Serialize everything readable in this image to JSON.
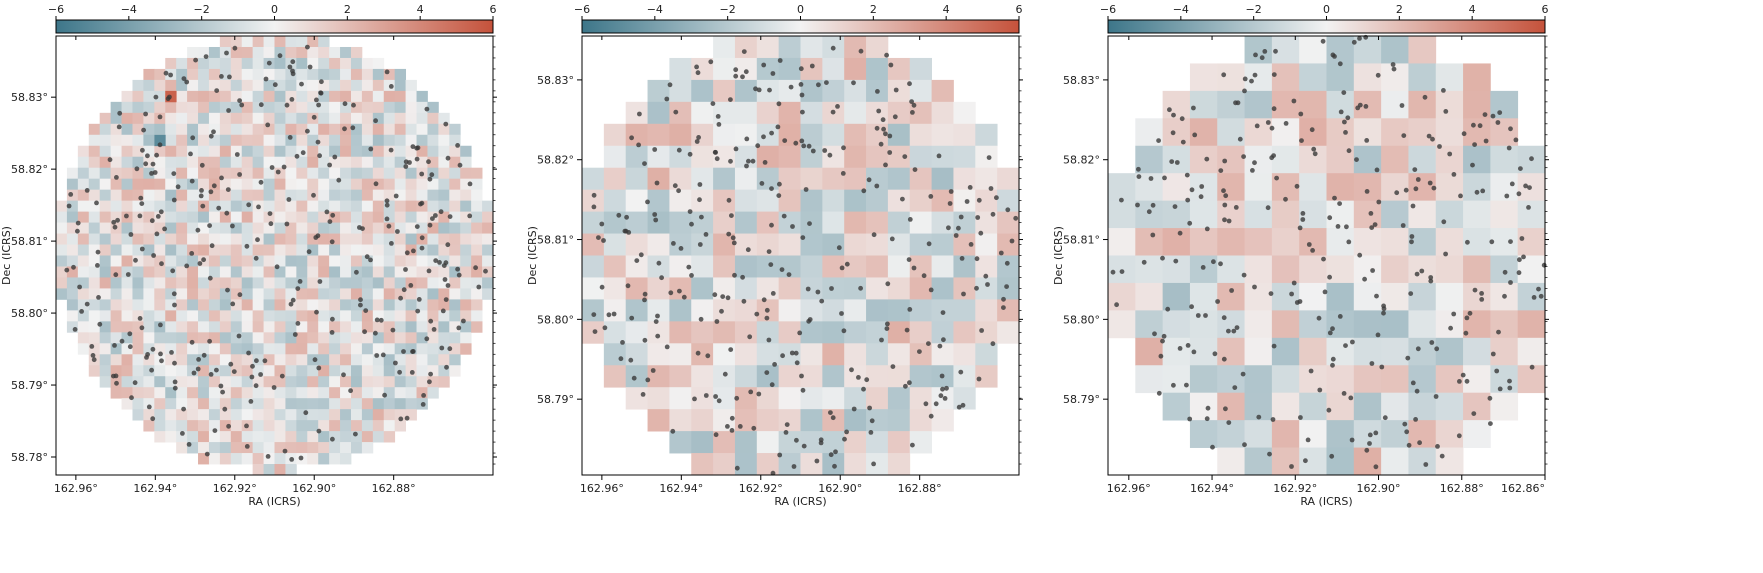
{
  "colorbar": {
    "min": -6,
    "max": 6,
    "ticks": [
      "−6",
      "−4",
      "−2",
      "0",
      "2",
      "4",
      "6"
    ],
    "colors": {
      "negative": "#3d7689",
      "zero": "#f2f2f2",
      "positive": "#c5523b"
    }
  },
  "chart_data": [
    {
      "type": "heatmap",
      "panel": 1,
      "xlabel": "RA (ICRS)",
      "ylabel": "Dec (ICRS)",
      "xlim": [
        162.965,
        162.855
      ],
      "ylim": [
        58.7775,
        58.8385
      ],
      "x_ticks": [
        162.96,
        162.94,
        162.92,
        162.9,
        162.88
      ],
      "x_tick_labels": [
        "162.96°",
        "162.94°",
        "162.92°",
        "162.90°",
        "162.88°"
      ],
      "y_ticks": [
        58.78,
        58.79,
        58.8,
        58.81,
        58.82,
        58.83
      ],
      "y_tick_labels": [
        "58.78°",
        "58.79°",
        "58.80°",
        "58.81°",
        "58.82°",
        "58.83°"
      ],
      "grid_cols": 40,
      "grid_rows": 40,
      "footprint_center": [
        162.91,
        58.8085
      ],
      "footprint_radius_fraction": 0.5,
      "value_range": [
        -6,
        6
      ],
      "n_sources": 340,
      "seed": 11,
      "highlight_cells": [
        {
          "ra": 162.936,
          "dec": 58.8295,
          "value": 5.4
        },
        {
          "ra": 162.9385,
          "dec": 58.8245,
          "value": -5.0
        }
      ]
    },
    {
      "type": "heatmap",
      "panel": 2,
      "xlabel": "RA (ICRS)",
      "ylabel": "Dec (ICRS)",
      "xlim": [
        162.965,
        162.855
      ],
      "ylim": [
        58.7805,
        58.8355
      ],
      "x_ticks": [
        162.96,
        162.94,
        162.92,
        162.9,
        162.88
      ],
      "x_tick_labels": [
        "162.96°",
        "162.94°",
        "162.92°",
        "162.90°",
        "162.88°"
      ],
      "y_ticks": [
        58.79,
        58.8,
        58.81,
        58.82,
        58.83
      ],
      "y_tick_labels": [
        "58.79°",
        "58.80°",
        "58.81°",
        "58.82°",
        "58.83°"
      ],
      "grid_cols": 20,
      "grid_rows": 20,
      "footprint_center": [
        162.91,
        58.8075
      ],
      "footprint_radius_fraction": 0.52,
      "value_range": [
        -6,
        6
      ],
      "n_sources": 320,
      "seed": 23,
      "highlight_cells": []
    },
    {
      "type": "heatmap",
      "panel": 3,
      "xlabel": "RA (ICRS)",
      "ylabel": "Dec (ICRS)",
      "xlim": [
        162.965,
        162.86
      ],
      "ylim": [
        58.7805,
        58.8355
      ],
      "x_ticks": [
        162.96,
        162.94,
        162.92,
        162.9,
        162.88,
        162.86
      ],
      "x_tick_labels": [
        "162.96°",
        "162.94°",
        "162.92°",
        "162.90°",
        "162.88°",
        "162.86°"
      ],
      "y_ticks": [
        58.79,
        58.8,
        58.81,
        58.82,
        58.83
      ],
      "y_tick_labels": [
        "58.79°",
        "58.80°",
        "58.81°",
        "58.82°",
        "58.83°"
      ],
      "grid_cols": 16,
      "grid_rows": 16,
      "footprint_center": [
        162.91,
        58.8075
      ],
      "footprint_radius_fraction": 0.53,
      "value_range": [
        -6,
        6
      ],
      "n_sources": 300,
      "seed": 37,
      "highlight_cells": []
    }
  ]
}
